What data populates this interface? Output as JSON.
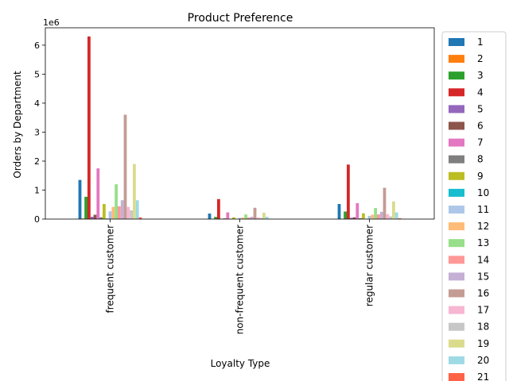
{
  "chart_data": {
    "type": "bar",
    "title": "Product Preference",
    "xlabel": "Loyalty Type",
    "ylabel": "Orders by Department",
    "offset_label": "1e6",
    "ylim": [
      0,
      6600000
    ],
    "yticks": [
      0,
      1000000,
      2000000,
      3000000,
      4000000,
      5000000,
      6000000
    ],
    "ytick_labels": [
      "0",
      "1",
      "2",
      "3",
      "4",
      "5",
      "6"
    ],
    "categories": [
      "frequent customer",
      "non-frequent customer",
      "regular customer"
    ],
    "legend_position": "outside-right",
    "series": [
      {
        "name": "1",
        "color": "#1f77b4",
        "values": [
          1350000,
          190000,
          520000
        ]
      },
      {
        "name": "2",
        "color": "#ff7f0e",
        "values": [
          20000,
          3000,
          10000
        ]
      },
      {
        "name": "3",
        "color": "#2ca02c",
        "values": [
          770000,
          75000,
          260000
        ]
      },
      {
        "name": "4",
        "color": "#d62728",
        "values": [
          6300000,
          690000,
          1880000
        ]
      },
      {
        "name": "5",
        "color": "#9467bd",
        "values": [
          80000,
          12000,
          45000
        ]
      },
      {
        "name": "6",
        "color": "#8c564b",
        "values": [
          150000,
          22000,
          60000
        ]
      },
      {
        "name": "7",
        "color": "#e377c2",
        "values": [
          1750000,
          230000,
          550000
        ]
      },
      {
        "name": "8",
        "color": "#7f7f7f",
        "values": [
          60000,
          8000,
          30000
        ]
      },
      {
        "name": "9",
        "color": "#bcbd22",
        "values": [
          520000,
          60000,
          200000
        ]
      },
      {
        "name": "10",
        "color": "#17becf",
        "values": [
          20000,
          3000,
          10000
        ]
      },
      {
        "name": "11",
        "color": "#aec7e8",
        "values": [
          270000,
          40000,
          110000
        ]
      },
      {
        "name": "12",
        "color": "#ffbb78",
        "values": [
          420000,
          50000,
          150000
        ]
      },
      {
        "name": "13",
        "color": "#98df8a",
        "values": [
          1200000,
          160000,
          380000
        ]
      },
      {
        "name": "14",
        "color": "#ff9896",
        "values": [
          440000,
          55000,
          160000
        ]
      },
      {
        "name": "15",
        "color": "#c5b0d5",
        "values": [
          650000,
          80000,
          250000
        ]
      },
      {
        "name": "16",
        "color": "#c49c94",
        "values": [
          3600000,
          390000,
          1080000
        ]
      },
      {
        "name": "17",
        "color": "#f7b6d2",
        "values": [
          420000,
          55000,
          170000
        ]
      },
      {
        "name": "18",
        "color": "#c7c7c7",
        "values": [
          300000,
          40000,
          90000
        ]
      },
      {
        "name": "19",
        "color": "#dbdb8d",
        "values": [
          1900000,
          220000,
          610000
        ]
      },
      {
        "name": "20",
        "color": "#9edae5",
        "values": [
          650000,
          80000,
          230000
        ]
      },
      {
        "name": "21",
        "color": "#ff6347",
        "values": [
          60000,
          8000,
          30000
        ]
      }
    ]
  }
}
